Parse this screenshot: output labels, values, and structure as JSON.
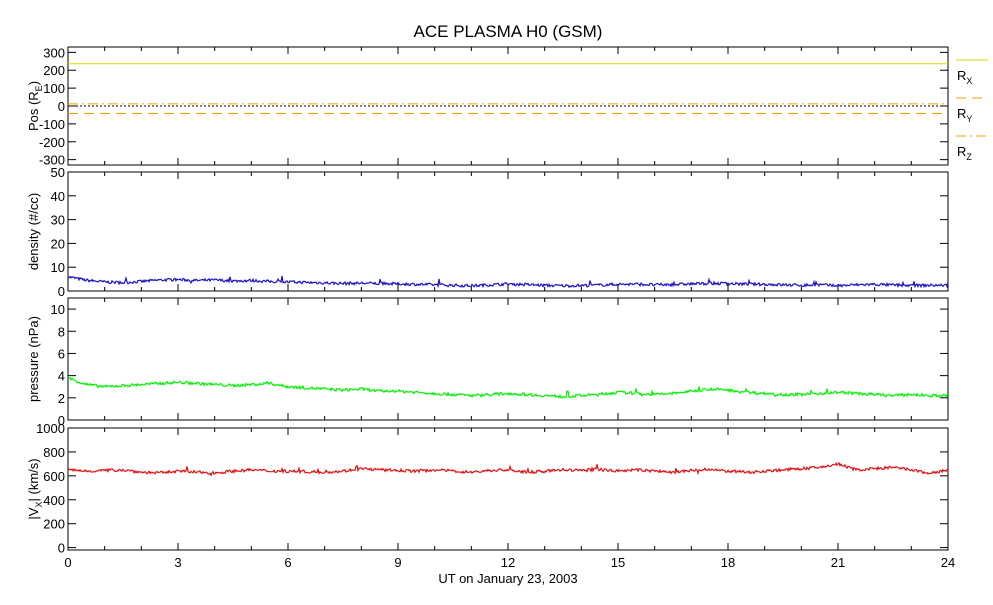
{
  "title": "ACE PLASMA H0 (GSM)",
  "xlabel": "UT on January 23, 2003",
  "x_ticks": [
    "0",
    "3",
    "6",
    "9",
    "12",
    "15",
    "18",
    "21",
    "24"
  ],
  "chart_data": [
    {
      "type": "line",
      "panel": "pos",
      "ylabel": "Pos (R",
      "ylabel_sub": "E",
      "ylabel_end": ")",
      "xlim": [
        0,
        24
      ],
      "ylim": [
        -330,
        330
      ],
      "y_ticks": [
        -300,
        -200,
        -100,
        0,
        100,
        200,
        300
      ],
      "series": [
        {
          "name": "R",
          "sub": "X",
          "color": "#e6d200",
          "style": "solid",
          "x": [
            0,
            24
          ],
          "values": [
            236,
            236
          ]
        },
        {
          "name": "R",
          "sub": "Y",
          "color": "#f0a000",
          "style": "dashed",
          "x": [
            0,
            24
          ],
          "values": [
            -42,
            -42
          ]
        },
        {
          "name": "R",
          "sub": "Z",
          "color": "#f0a000",
          "style": "dashdot",
          "x": [
            0,
            24
          ],
          "values": [
            12,
            12
          ]
        }
      ]
    },
    {
      "type": "line",
      "panel": "density",
      "ylabel": "density (#/cc)",
      "xlim": [
        0,
        24
      ],
      "ylim": [
        0,
        50
      ],
      "y_ticks": [
        0,
        10,
        20,
        30,
        40,
        50
      ],
      "series": [
        {
          "color": "#1a10c8",
          "x": [
            0,
            0.5,
            1,
            1.5,
            2,
            2.5,
            3,
            3.5,
            4,
            4.5,
            5,
            5.5,
            6,
            6.5,
            7,
            7.5,
            8,
            8.5,
            9,
            9.5,
            10,
            10.5,
            11,
            11.5,
            12,
            12.5,
            13,
            13.5,
            14,
            14.5,
            15,
            15.5,
            16,
            16.5,
            17,
            17.5,
            18,
            18.5,
            19,
            19.5,
            20,
            20.5,
            21,
            21.5,
            22,
            22.5,
            23,
            23.5,
            24
          ],
          "values": [
            6,
            4.5,
            3.8,
            3.5,
            4,
            4.6,
            4.8,
            4.4,
            4.6,
            4.2,
            4.4,
            4,
            3.8,
            3.6,
            3.4,
            3.2,
            3.3,
            3.1,
            3,
            2.8,
            2.6,
            2.4,
            2.2,
            2.6,
            3,
            2.7,
            2.4,
            2.2,
            2.3,
            2.5,
            2.8,
            2.9,
            2.6,
            2.7,
            3,
            3.2,
            3.1,
            2.9,
            2.8,
            2.6,
            2.4,
            2.6,
            2.2,
            2.6,
            2.8,
            2.5,
            2.3,
            2.4,
            2.4
          ]
        }
      ]
    },
    {
      "type": "line",
      "panel": "pressure",
      "ylabel": "pressure (nPa)",
      "xlim": [
        0,
        24
      ],
      "ylim": [
        0,
        11
      ],
      "y_ticks": [
        0,
        2,
        4,
        6,
        8,
        10
      ],
      "series": [
        {
          "color": "#00f000",
          "x": [
            0,
            0.5,
            1,
            1.5,
            2,
            2.5,
            3,
            3.5,
            4,
            4.5,
            5,
            5.5,
            6,
            6.5,
            7,
            7.5,
            8,
            8.5,
            9,
            9.5,
            10,
            10.5,
            11,
            11.5,
            12,
            12.5,
            13,
            13.5,
            14,
            14.5,
            15,
            15.5,
            16,
            16.5,
            17,
            17.5,
            18,
            18.5,
            19,
            19.5,
            20,
            20.5,
            21,
            21.5,
            22,
            22.5,
            23,
            23.5,
            24
          ],
          "values": [
            3.8,
            3.2,
            3,
            3.1,
            3.2,
            3.3,
            3.4,
            3.3,
            3.2,
            3.1,
            3.2,
            3.3,
            3,
            2.9,
            2.8,
            2.7,
            2.8,
            2.6,
            2.6,
            2.5,
            2.4,
            2.3,
            2.2,
            2.3,
            2.4,
            2.3,
            2.2,
            2.1,
            2.2,
            2.3,
            2.5,
            2.4,
            2.3,
            2.4,
            2.6,
            2.8,
            2.7,
            2.5,
            2.4,
            2.3,
            2.3,
            2.4,
            2.5,
            2.4,
            2.3,
            2.2,
            2.3,
            2.2,
            2.2
          ]
        }
      ]
    },
    {
      "type": "line",
      "panel": "vx",
      "ylabel": "|V",
      "ylabel_sub": "X",
      "ylabel_end": "| (km/s)",
      "xlim": [
        0,
        24
      ],
      "ylim": [
        -20,
        1000
      ],
      "y_ticks": [
        0,
        200,
        400,
        600,
        800,
        1000
      ],
      "series": [
        {
          "color": "#e01010",
          "x": [
            0,
            0.5,
            1,
            1.5,
            2,
            2.5,
            3,
            3.5,
            4,
            4.5,
            5,
            5.5,
            6,
            6.5,
            7,
            7.5,
            8,
            8.5,
            9,
            9.5,
            10,
            10.5,
            11,
            11.5,
            12,
            12.5,
            13,
            13.5,
            14,
            14.5,
            15,
            15.5,
            16,
            16.5,
            17,
            17.5,
            18,
            18.5,
            19,
            19.5,
            20,
            20.5,
            21,
            21.5,
            22,
            22.5,
            23,
            23.5,
            24
          ],
          "values": [
            650,
            640,
            645,
            650,
            630,
            625,
            640,
            630,
            625,
            640,
            650,
            640,
            640,
            635,
            630,
            640,
            660,
            650,
            645,
            640,
            650,
            640,
            630,
            645,
            650,
            630,
            640,
            650,
            645,
            655,
            640,
            650,
            640,
            630,
            645,
            650,
            640,
            630,
            640,
            650,
            660,
            670,
            700,
            650,
            660,
            670,
            650,
            620,
            650
          ]
        }
      ]
    }
  ]
}
